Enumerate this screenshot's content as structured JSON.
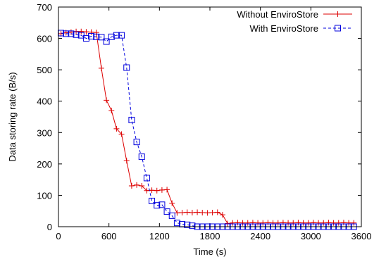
{
  "chart_data": {
    "type": "line",
    "xlabel": "Time (s)",
    "ylabel": "Data storing rate (B/s)",
    "xlim": [
      0,
      3600
    ],
    "ylim": [
      0,
      700
    ],
    "xticks": [
      0,
      600,
      1200,
      1800,
      2400,
      3000,
      3600
    ],
    "yticks": [
      0,
      100,
      200,
      300,
      400,
      500,
      600,
      700
    ],
    "grid": false,
    "legend_position": "top-right",
    "series": [
      {
        "name": "Without EnviroStore",
        "color": "#dd0000",
        "line_style": "solid",
        "marker": "plus",
        "points": [
          [
            30,
            615
          ],
          [
            90,
            618
          ],
          [
            150,
            620
          ],
          [
            210,
            622
          ],
          [
            270,
            622
          ],
          [
            330,
            621
          ],
          [
            390,
            620
          ],
          [
            450,
            619
          ],
          [
            510,
            505
          ],
          [
            570,
            403
          ],
          [
            630,
            370
          ],
          [
            690,
            312
          ],
          [
            750,
            295
          ],
          [
            810,
            210
          ],
          [
            870,
            130
          ],
          [
            930,
            133
          ],
          [
            990,
            130
          ],
          [
            1050,
            115
          ],
          [
            1110,
            116
          ],
          [
            1170,
            115
          ],
          [
            1230,
            117
          ],
          [
            1290,
            118
          ],
          [
            1350,
            75
          ],
          [
            1410,
            44
          ],
          [
            1470,
            45
          ],
          [
            1530,
            46
          ],
          [
            1590,
            45
          ],
          [
            1650,
            46
          ],
          [
            1710,
            45
          ],
          [
            1770,
            44
          ],
          [
            1830,
            45
          ],
          [
            1890,
            46
          ],
          [
            1950,
            38
          ],
          [
            2010,
            10
          ],
          [
            2070,
            12
          ],
          [
            2130,
            13
          ],
          [
            2190,
            12
          ],
          [
            2250,
            12
          ],
          [
            2310,
            13
          ],
          [
            2370,
            12
          ],
          [
            2430,
            12
          ],
          [
            2490,
            13
          ],
          [
            2550,
            12
          ],
          [
            2610,
            12
          ],
          [
            2670,
            13
          ],
          [
            2730,
            12
          ],
          [
            2790,
            12
          ],
          [
            2850,
            13
          ],
          [
            2910,
            12
          ],
          [
            2970,
            12
          ],
          [
            3030,
            13
          ],
          [
            3090,
            12
          ],
          [
            3150,
            12
          ],
          [
            3210,
            13
          ],
          [
            3270,
            12
          ],
          [
            3330,
            12
          ],
          [
            3390,
            13
          ],
          [
            3450,
            12
          ],
          [
            3510,
            12
          ]
        ]
      },
      {
        "name": "With EnviroStore",
        "color": "#0000dd",
        "line_style": "dashed",
        "marker": "square",
        "points": [
          [
            30,
            617
          ],
          [
            90,
            615
          ],
          [
            150,
            615
          ],
          [
            210,
            612
          ],
          [
            270,
            610
          ],
          [
            330,
            600
          ],
          [
            390,
            607
          ],
          [
            450,
            605
          ],
          [
            510,
            604
          ],
          [
            570,
            590
          ],
          [
            630,
            605
          ],
          [
            690,
            610
          ],
          [
            750,
            610
          ],
          [
            810,
            507
          ],
          [
            870,
            340
          ],
          [
            930,
            270
          ],
          [
            990,
            223
          ],
          [
            1050,
            155
          ],
          [
            1110,
            82
          ],
          [
            1170,
            68
          ],
          [
            1230,
            70
          ],
          [
            1290,
            48
          ],
          [
            1350,
            35
          ],
          [
            1410,
            12
          ],
          [
            1470,
            8
          ],
          [
            1530,
            6
          ],
          [
            1590,
            3
          ],
          [
            1650,
            0
          ],
          [
            1710,
            0
          ],
          [
            1770,
            0
          ],
          [
            1830,
            0
          ],
          [
            1890,
            0
          ],
          [
            1950,
            0
          ],
          [
            2010,
            0
          ],
          [
            2070,
            0
          ],
          [
            2130,
            0
          ],
          [
            2190,
            0
          ],
          [
            2250,
            0
          ],
          [
            2310,
            0
          ],
          [
            2370,
            0
          ],
          [
            2430,
            0
          ],
          [
            2490,
            0
          ],
          [
            2550,
            0
          ],
          [
            2610,
            0
          ],
          [
            2670,
            0
          ],
          [
            2730,
            0
          ],
          [
            2790,
            0
          ],
          [
            2850,
            0
          ],
          [
            2910,
            0
          ],
          [
            2970,
            0
          ],
          [
            3030,
            0
          ],
          [
            3090,
            0
          ],
          [
            3150,
            0
          ],
          [
            3210,
            0
          ],
          [
            3270,
            0
          ],
          [
            3330,
            0
          ],
          [
            3390,
            0
          ],
          [
            3450,
            0
          ],
          [
            3510,
            0
          ]
        ]
      }
    ]
  }
}
